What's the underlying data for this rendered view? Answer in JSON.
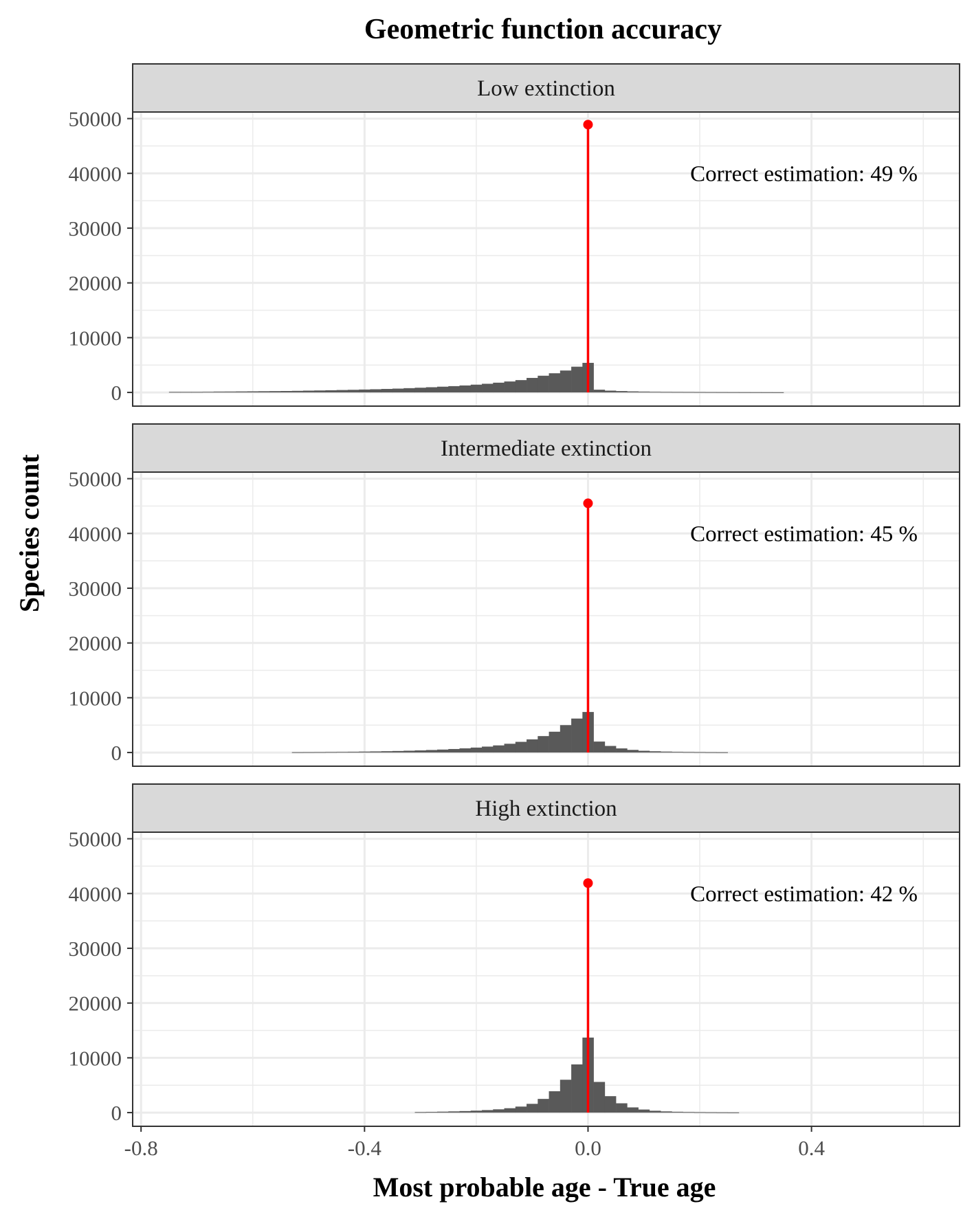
{
  "chart_data": {
    "type": "bar",
    "title": "Geometric function accuracy",
    "xlabel": "Most probable age - True age",
    "ylabel": "Species count",
    "xlim": [
      -0.815,
      0.665
    ],
    "ylim": [
      -2500,
      51200
    ],
    "xticks": [
      -0.8,
      -0.4,
      0.0,
      0.4
    ],
    "xtick_labels": [
      "-0.8",
      "-0.4",
      "0.0",
      "0.4"
    ],
    "yticks": [
      0,
      10000,
      20000,
      30000,
      40000,
      50000
    ],
    "ytick_labels": [
      "0",
      "10000",
      "20000",
      "30000",
      "40000",
      "50000"
    ],
    "grid": true,
    "bin_width": 0.02,
    "colors": {
      "bars": "#595959",
      "marker": "#ff0000",
      "strip": "#d9d9d9",
      "grid": "#ebebeb",
      "panel_border": "#333333"
    },
    "panels": [
      {
        "strip": "Low extinction",
        "annotation": "Correct estimation: 49 %",
        "correct_value": 48900,
        "bins": [
          [
            -0.74,
            100
          ],
          [
            -0.72,
            100
          ],
          [
            -0.7,
            100
          ],
          [
            -0.68,
            120
          ],
          [
            -0.66,
            150
          ],
          [
            -0.64,
            160
          ],
          [
            -0.62,
            180
          ],
          [
            -0.6,
            200
          ],
          [
            -0.58,
            220
          ],
          [
            -0.56,
            240
          ],
          [
            -0.54,
            260
          ],
          [
            -0.52,
            290
          ],
          [
            -0.5,
            330
          ],
          [
            -0.48,
            360
          ],
          [
            -0.46,
            400
          ],
          [
            -0.44,
            440
          ],
          [
            -0.42,
            480
          ],
          [
            -0.4,
            530
          ],
          [
            -0.38,
            580
          ],
          [
            -0.36,
            640
          ],
          [
            -0.34,
            700
          ],
          [
            -0.32,
            780
          ],
          [
            -0.3,
            860
          ],
          [
            -0.28,
            950
          ],
          [
            -0.26,
            1050
          ],
          [
            -0.24,
            1150
          ],
          [
            -0.22,
            1270
          ],
          [
            -0.2,
            1420
          ],
          [
            -0.18,
            1580
          ],
          [
            -0.16,
            1780
          ],
          [
            -0.14,
            2000
          ],
          [
            -0.12,
            2250
          ],
          [
            -0.1,
            2650
          ],
          [
            -0.08,
            3050
          ],
          [
            -0.06,
            3500
          ],
          [
            -0.04,
            4000
          ],
          [
            -0.02,
            4700
          ],
          [
            0.0,
            5400
          ],
          [
            0.02,
            500
          ],
          [
            0.04,
            330
          ],
          [
            0.06,
            250
          ],
          [
            0.08,
            190
          ],
          [
            0.1,
            150
          ],
          [
            0.12,
            120
          ],
          [
            0.14,
            100
          ],
          [
            0.16,
            90
          ],
          [
            0.18,
            80
          ],
          [
            0.2,
            70
          ],
          [
            0.22,
            60
          ],
          [
            0.24,
            55
          ],
          [
            0.26,
            50
          ],
          [
            0.28,
            45
          ],
          [
            0.3,
            40
          ],
          [
            0.32,
            35
          ],
          [
            0.34,
            30
          ]
        ]
      },
      {
        "strip": "Intermediate extinction",
        "annotation": "Correct estimation: 45 %",
        "correct_value": 45500,
        "bins": [
          [
            -0.52,
            60
          ],
          [
            -0.5,
            70
          ],
          [
            -0.48,
            80
          ],
          [
            -0.46,
            100
          ],
          [
            -0.44,
            120
          ],
          [
            -0.42,
            140
          ],
          [
            -0.4,
            170
          ],
          [
            -0.38,
            200
          ],
          [
            -0.36,
            240
          ],
          [
            -0.34,
            280
          ],
          [
            -0.32,
            330
          ],
          [
            -0.3,
            390
          ],
          [
            -0.28,
            460
          ],
          [
            -0.26,
            540
          ],
          [
            -0.24,
            640
          ],
          [
            -0.22,
            760
          ],
          [
            -0.2,
            900
          ],
          [
            -0.18,
            1080
          ],
          [
            -0.16,
            1300
          ],
          [
            -0.14,
            1600
          ],
          [
            -0.12,
            1950
          ],
          [
            -0.1,
            2400
          ],
          [
            -0.08,
            3000
          ],
          [
            -0.06,
            3800
          ],
          [
            -0.04,
            5000
          ],
          [
            -0.02,
            6200
          ],
          [
            0.0,
            7400
          ],
          [
            0.02,
            2000
          ],
          [
            0.04,
            1200
          ],
          [
            0.06,
            750
          ],
          [
            0.08,
            480
          ],
          [
            0.1,
            320
          ],
          [
            0.12,
            230
          ],
          [
            0.14,
            170
          ],
          [
            0.16,
            130
          ],
          [
            0.18,
            100
          ],
          [
            0.2,
            80
          ],
          [
            0.22,
            60
          ],
          [
            0.24,
            50
          ]
        ]
      },
      {
        "strip": "High extinction",
        "annotation": "Correct estimation: 42 %",
        "correct_value": 41900,
        "bins": [
          [
            -0.3,
            100
          ],
          [
            -0.28,
            130
          ],
          [
            -0.26,
            170
          ],
          [
            -0.24,
            220
          ],
          [
            -0.22,
            280
          ],
          [
            -0.2,
            360
          ],
          [
            -0.18,
            460
          ],
          [
            -0.16,
            600
          ],
          [
            -0.14,
            800
          ],
          [
            -0.12,
            1100
          ],
          [
            -0.1,
            1600
          ],
          [
            -0.08,
            2500
          ],
          [
            -0.06,
            3900
          ],
          [
            -0.04,
            6000
          ],
          [
            -0.02,
            8800
          ],
          [
            0.0,
            13700
          ],
          [
            0.02,
            5600
          ],
          [
            0.04,
            3000
          ],
          [
            0.06,
            1700
          ],
          [
            0.08,
            950
          ],
          [
            0.1,
            560
          ],
          [
            0.12,
            340
          ],
          [
            0.14,
            220
          ],
          [
            0.16,
            150
          ],
          [
            0.18,
            110
          ],
          [
            0.2,
            80
          ],
          [
            0.22,
            60
          ],
          [
            0.24,
            45
          ],
          [
            0.26,
            35
          ]
        ]
      }
    ]
  }
}
